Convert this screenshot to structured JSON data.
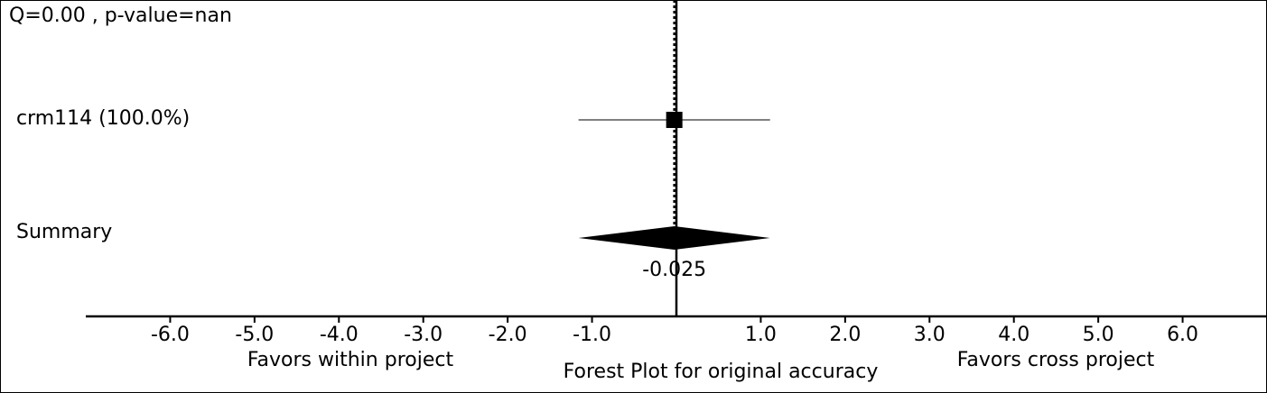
{
  "chart_data": {
    "type": "forest",
    "title": "Forest Plot for original accuracy",
    "heterogeneity": "Q=0.00 , p-value=nan",
    "left_favor_label": "Favors within project",
    "right_favor_label": "Favors cross project",
    "xlim": [
      -7.0,
      7.0
    ],
    "ticks": [
      -6.0,
      -5.0,
      -4.0,
      -3.0,
      -2.0,
      -1.0,
      1.0,
      2.0,
      3.0,
      4.0,
      5.0,
      6.0
    ],
    "tick_labels": [
      "-6.0",
      "-5.0",
      "-4.0",
      "-3.0",
      "-2.0",
      "-1.0",
      "1.0",
      "2.0",
      "3.0",
      "4.0",
      "5.0",
      "6.0"
    ],
    "null_line": 0.0,
    "studies": [
      {
        "label": "crm114 (100.0%)",
        "estimate": -0.025,
        "ci": [
          -1.16,
          1.11
        ],
        "weight": 100.0
      }
    ],
    "summary": {
      "label": "Summary",
      "estimate": -0.025,
      "estimate_label": "-0.025",
      "ci": [
        -1.16,
        1.11
      ]
    }
  }
}
